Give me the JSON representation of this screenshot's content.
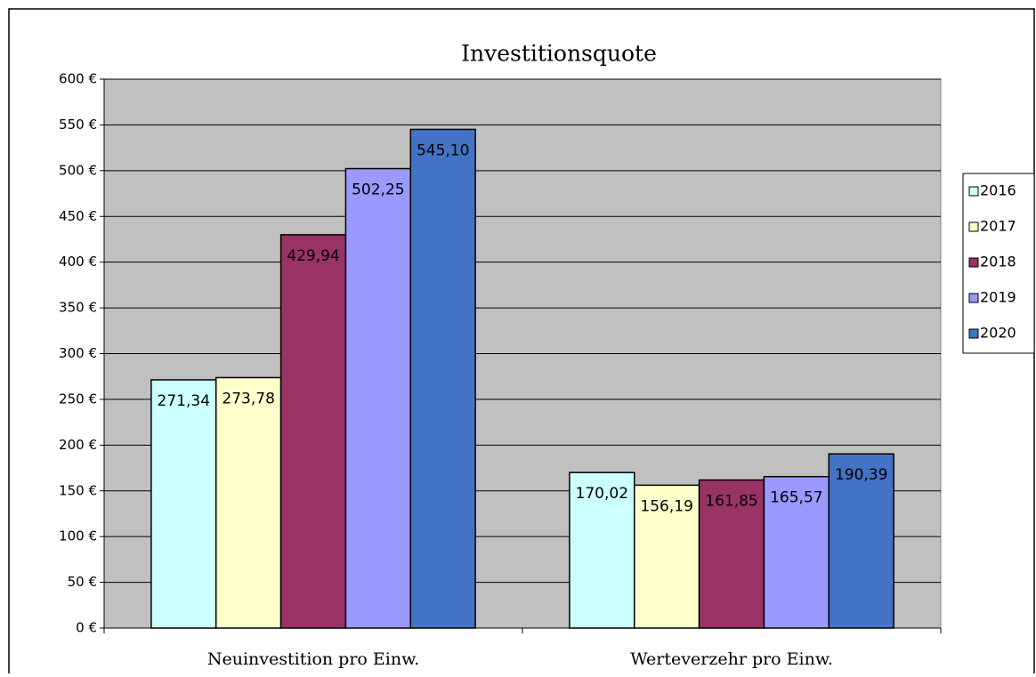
{
  "chart_data": {
    "type": "bar",
    "title": "Investitionsquote",
    "categories": [
      "Neuinvestition pro Einw.",
      "Werteverzehr pro Einw."
    ],
    "series": [
      {
        "name": "2016",
        "color": "#ccffff",
        "values": [
          271.34,
          170.02
        ],
        "value_labels": [
          "271,34",
          "170,02"
        ]
      },
      {
        "name": "2017",
        "color": "#ffffcc",
        "values": [
          273.78,
          156.19
        ],
        "value_labels": [
          "273,78",
          "156,19"
        ]
      },
      {
        "name": "2018",
        "color": "#993366",
        "values": [
          429.94,
          161.85
        ],
        "value_labels": [
          "429,94",
          "161,85"
        ]
      },
      {
        "name": "2019",
        "color": "#9999ff",
        "values": [
          502.25,
          165.57
        ],
        "value_labels": [
          "502,25",
          "165,57"
        ]
      },
      {
        "name": "2020",
        "color": "#4472c4",
        "values": [
          545.1,
          190.39
        ],
        "value_labels": [
          "545,10",
          "190,39"
        ]
      }
    ],
    "ylim": [
      0,
      600
    ],
    "yticks": [
      {
        "value": 0,
        "label": "0 €"
      },
      {
        "value": 50,
        "label": "50 €"
      },
      {
        "value": 100,
        "label": "100 €"
      },
      {
        "value": 150,
        "label": "150 €"
      },
      {
        "value": 200,
        "label": "200 €"
      },
      {
        "value": 250,
        "label": "250 €"
      },
      {
        "value": 300,
        "label": "300 €"
      },
      {
        "value": 350,
        "label": "350 €"
      },
      {
        "value": 400,
        "label": "400 €"
      },
      {
        "value": 450,
        "label": "450 €"
      },
      {
        "value": 500,
        "label": "500 €"
      },
      {
        "value": 550,
        "label": "550 €"
      },
      {
        "value": 600,
        "label": "600 €"
      }
    ],
    "grid": true,
    "legend": "right"
  }
}
